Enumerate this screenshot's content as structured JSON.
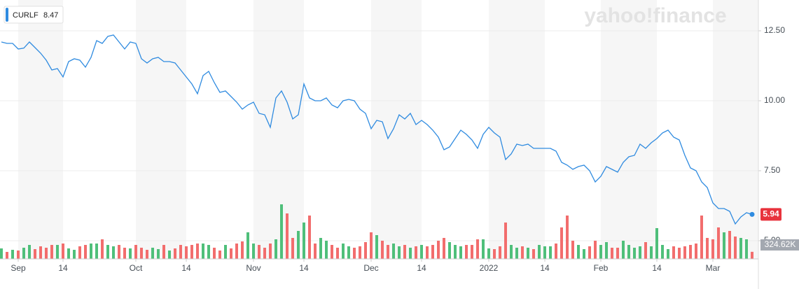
{
  "chart_data": {
    "type": "line",
    "watermark": "yahoo!finance",
    "legend_value": 8.47,
    "categories": [
      null,
      null,
      null,
      "Sep",
      null,
      null,
      null,
      null,
      null,
      null,
      null,
      "14",
      null,
      null,
      null,
      null,
      null,
      null,
      null,
      null,
      null,
      null,
      null,
      null,
      "Oct",
      null,
      null,
      null,
      null,
      null,
      null,
      null,
      null,
      "14",
      null,
      null,
      null,
      null,
      null,
      null,
      null,
      null,
      null,
      null,
      null,
      "Nov",
      null,
      null,
      null,
      null,
      null,
      null,
      null,
      null,
      "14",
      null,
      null,
      null,
      null,
      null,
      null,
      null,
      null,
      null,
      null,
      null,
      "Dec",
      null,
      null,
      null,
      null,
      null,
      null,
      null,
      null,
      "14",
      null,
      null,
      null,
      null,
      null,
      null,
      null,
      null,
      null,
      null,
      null,
      "2022",
      null,
      null,
      null,
      null,
      null,
      null,
      null,
      null,
      null,
      "14",
      null,
      null,
      null,
      null,
      null,
      null,
      null,
      null,
      null,
      "Feb",
      null,
      null,
      null,
      null,
      null,
      null,
      null,
      null,
      null,
      "14",
      null,
      null,
      null,
      null,
      null,
      null,
      null,
      null,
      null,
      "Mar",
      null,
      null,
      null,
      null,
      null,
      null,
      null
    ],
    "series": [
      {
        "name": "CURLF",
        "color": "#2f8be0",
        "label_color": "#e8333d",
        "values": [
          12.1,
          12.05,
          12.05,
          11.85,
          11.88,
          12.1,
          11.9,
          11.7,
          11.45,
          11.1,
          11.15,
          10.85,
          11.4,
          11.5,
          11.45,
          11.2,
          11.55,
          12.15,
          12.05,
          12.3,
          12.35,
          12.1,
          11.85,
          12.1,
          12.05,
          11.5,
          11.35,
          11.5,
          11.55,
          11.4,
          11.4,
          11.35,
          11.1,
          10.85,
          10.6,
          10.25,
          10.9,
          11.05,
          10.65,
          10.3,
          10.35,
          10.15,
          9.95,
          9.7,
          9.85,
          9.95,
          9.55,
          9.5,
          9.05,
          10.1,
          10.35,
          9.95,
          9.35,
          9.5,
          10.6,
          10.1,
          10.0,
          10.0,
          10.1,
          9.85,
          9.75,
          10.0,
          10.05,
          10.0,
          9.7,
          9.55,
          9.0,
          9.3,
          9.25,
          8.65,
          9.0,
          9.5,
          9.35,
          9.55,
          9.15,
          9.3,
          9.15,
          8.95,
          8.7,
          8.25,
          8.35,
          8.65,
          8.95,
          8.8,
          8.6,
          8.3,
          8.8,
          9.05,
          8.85,
          8.7,
          7.9,
          8.1,
          8.45,
          8.4,
          8.45,
          8.3,
          8.3,
          8.3,
          8.3,
          8.2,
          7.8,
          7.7,
          7.55,
          7.65,
          7.7,
          7.5,
          7.1,
          7.3,
          7.65,
          7.55,
          7.45,
          7.8,
          8.0,
          8.05,
          8.45,
          8.3,
          8.5,
          8.65,
          8.85,
          8.95,
          8.7,
          8.6,
          8.05,
          7.6,
          7.5,
          7.1,
          6.9,
          6.35,
          6.15,
          6.15,
          6.05,
          5.6,
          5.85,
          6.0,
          5.94
        ]
      },
      {
        "type": "volume",
        "up_color": "#4fbf7a",
        "down_color": "#f26d6d",
        "label_color": "#a3a8b0",
        "values": [
          480000,
          320000,
          416000,
          384000,
          512000,
          640000,
          448000,
          576000,
          512000,
          640000,
          640000,
          704000,
          480000,
          416000,
          576000,
          640000,
          704000,
          704000,
          896000,
          640000,
          576000,
          640000,
          512000,
          480000,
          640000,
          512000,
          416000,
          512000,
          448000,
          640000,
          384000,
          480000,
          640000,
          576000,
          640000,
          704000,
          704000,
          640000,
          512000,
          384000,
          640000,
          480000,
          704000,
          800000,
          1216000,
          704000,
          640000,
          512000,
          704000,
          896000,
          2496000,
          2080000,
          960000,
          1280000,
          1664000,
          1984000,
          704000,
          960000,
          832000,
          640000,
          512000,
          704000,
          576000,
          512000,
          576000,
          768000,
          1216000,
          1088000,
          832000,
          640000,
          704000,
          576000,
          640000,
          512000,
          576000,
          640000,
          576000,
          640000,
          832000,
          960000,
          768000,
          640000,
          576000,
          640000,
          640000,
          896000,
          896000,
          480000,
          448000,
          576000,
          1664000,
          640000,
          512000,
          576000,
          512000,
          448000,
          640000,
          576000,
          576000,
          704000,
          1440000,
          1984000,
          832000,
          640000,
          448000,
          576000,
          832000,
          640000,
          768000,
          512000,
          512000,
          832000,
          640000,
          512000,
          576000,
          768000,
          576000,
          1408000,
          640000,
          448000,
          576000,
          512000,
          576000,
          640000,
          704000,
          1984000,
          960000,
          896000,
          1440000,
          1216000,
          1280000,
          1024000,
          960000,
          896000,
          324620
        ],
        "value_labels": [
          null,
          null,
          null,
          null,
          null,
          null,
          null,
          null,
          null,
          null,
          null,
          null,
          null,
          null,
          null,
          null,
          null,
          null,
          null,
          null,
          null,
          null,
          null,
          null,
          null,
          null,
          null,
          null,
          null,
          null,
          null,
          null,
          null,
          null,
          null,
          null,
          null,
          null,
          null,
          null,
          null,
          null,
          null,
          null,
          null,
          null,
          null,
          null,
          null,
          null,
          null,
          null,
          null,
          null,
          null,
          null,
          null,
          null,
          null,
          null,
          null,
          null,
          null,
          null,
          null,
          null,
          null,
          null,
          null,
          null,
          null,
          null,
          null,
          null,
          null,
          null,
          null,
          null,
          null,
          null,
          null,
          null,
          null,
          null,
          null,
          null,
          null,
          null,
          null,
          null,
          null,
          null,
          null,
          null,
          null,
          null,
          null,
          null,
          null,
          null,
          null,
          null,
          null,
          null,
          null,
          null,
          null,
          null,
          null,
          null,
          null,
          null,
          null,
          null,
          null,
          null,
          null,
          null,
          null,
          null,
          null,
          null,
          null,
          null,
          null,
          null,
          null,
          null,
          null,
          null,
          null,
          null,
          null,
          null,
          "324.62K"
        ]
      }
    ],
    "ylim": [
      4.3,
      13.6
    ],
    "yticks": [
      {
        "value": 5,
        "label": "5.00"
      },
      {
        "value": 7.5,
        "label": "7.50"
      },
      {
        "value": 10,
        "label": "10.00"
      },
      {
        "value": 12.5,
        "label": "12.50"
      }
    ],
    "grid": true,
    "band_color": "#f6f6f6"
  }
}
